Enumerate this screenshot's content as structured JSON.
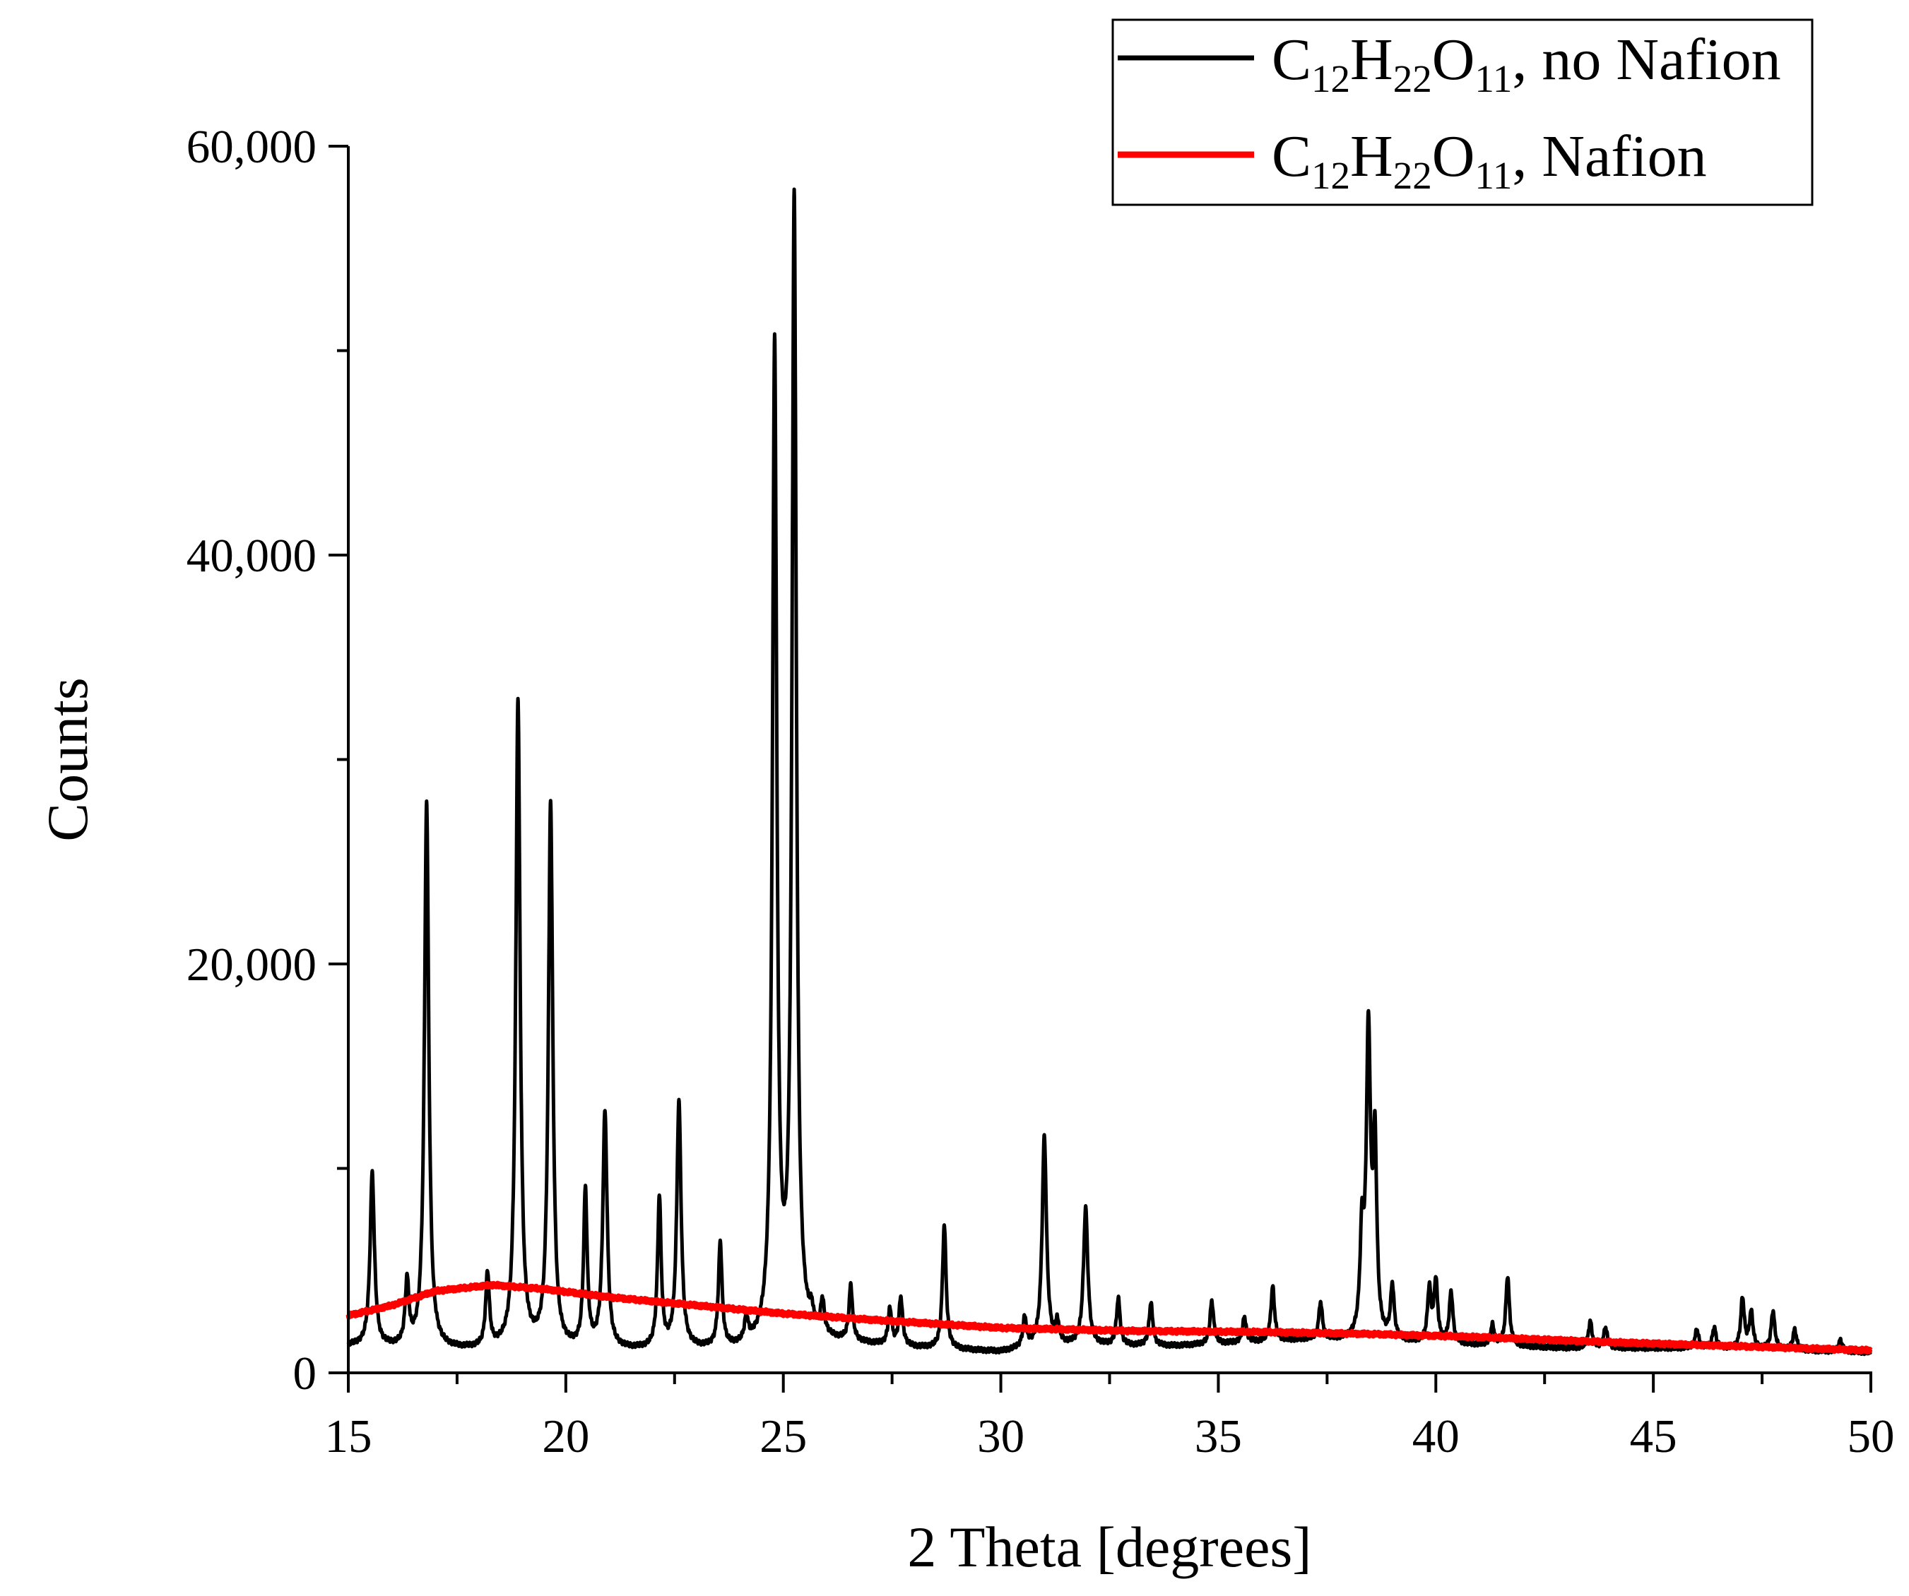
{
  "chart_data": {
    "type": "line",
    "title": "",
    "xlabel": "2 Theta [degrees]",
    "ylabel": "Counts",
    "xlim": [
      15,
      50
    ],
    "ylim": [
      0,
      60000
    ],
    "x_ticks": [
      15,
      20,
      25,
      30,
      35,
      40,
      45,
      50
    ],
    "x_tick_labels": [
      "15",
      "20",
      "25",
      "30",
      "35",
      "40",
      "45",
      "50"
    ],
    "y_ticks": [
      0,
      20000,
      40000,
      60000
    ],
    "y_tick_labels": [
      "0",
      "20,000",
      "40,000",
      "60,000"
    ],
    "legend_position": "top-right",
    "series": [
      {
        "name": "C12H22O11, no Nafion",
        "legend": {
          "base1": "C",
          "sub1": "12",
          "base2": "H",
          "sub2": "22",
          "base3": "O",
          "sub3": "11",
          "suffix": ", no Nafion"
        },
        "color": "#000000",
        "baseline": [
          [
            15,
            1300
          ],
          [
            17,
            1100
          ],
          [
            20,
            1050
          ],
          [
            24,
            1100
          ],
          [
            26,
            1500
          ],
          [
            28,
            1200
          ],
          [
            30,
            1000
          ],
          [
            31,
            1300
          ],
          [
            34,
            1300
          ],
          [
            37,
            1600
          ],
          [
            40,
            1400
          ],
          [
            43,
            1200
          ],
          [
            46,
            1200
          ],
          [
            50,
            1000
          ]
        ],
        "peaks": [
          {
            "x": 15.55,
            "y": 9700,
            "w": 0.06
          },
          {
            "x": 16.35,
            "y": 4300,
            "w": 0.05
          },
          {
            "x": 16.8,
            "y": 27800,
            "w": 0.06
          },
          {
            "x": 18.2,
            "y": 4700,
            "w": 0.05
          },
          {
            "x": 18.9,
            "y": 32800,
            "w": 0.06
          },
          {
            "x": 19.65,
            "y": 27800,
            "w": 0.06
          },
          {
            "x": 20.45,
            "y": 8700,
            "w": 0.05
          },
          {
            "x": 20.9,
            "y": 12600,
            "w": 0.06
          },
          {
            "x": 22.15,
            "y": 8400,
            "w": 0.05
          },
          {
            "x": 22.6,
            "y": 13100,
            "w": 0.06
          },
          {
            "x": 23.55,
            "y": 6200,
            "w": 0.05
          },
          {
            "x": 24.15,
            "y": 2300,
            "w": 0.05
          },
          {
            "x": 24.8,
            "y": 49700,
            "w": 0.06
          },
          {
            "x": 25.25,
            "y": 57000,
            "w": 0.06
          },
          {
            "x": 25.65,
            "y": 2200,
            "w": 0.05
          },
          {
            "x": 25.9,
            "y": 3100,
            "w": 0.05
          },
          {
            "x": 26.55,
            "y": 4100,
            "w": 0.05
          },
          {
            "x": 27.45,
            "y": 3000,
            "w": 0.05
          },
          {
            "x": 27.7,
            "y": 3600,
            "w": 0.05
          },
          {
            "x": 28.7,
            "y": 7200,
            "w": 0.05
          },
          {
            "x": 30.55,
            "y": 2600,
            "w": 0.05
          },
          {
            "x": 31.0,
            "y": 11500,
            "w": 0.06
          },
          {
            "x": 31.3,
            "y": 2300,
            "w": 0.05
          },
          {
            "x": 31.95,
            "y": 8000,
            "w": 0.06
          },
          {
            "x": 32.7,
            "y": 3600,
            "w": 0.05
          },
          {
            "x": 33.45,
            "y": 3400,
            "w": 0.05
          },
          {
            "x": 34.85,
            "y": 3500,
            "w": 0.05
          },
          {
            "x": 35.6,
            "y": 2700,
            "w": 0.05
          },
          {
            "x": 36.25,
            "y": 4200,
            "w": 0.05
          },
          {
            "x": 37.35,
            "y": 3400,
            "w": 0.05
          },
          {
            "x": 38.3,
            "y": 6100,
            "w": 0.05
          },
          {
            "x": 38.45,
            "y": 16300,
            "w": 0.06
          },
          {
            "x": 38.6,
            "y": 10500,
            "w": 0.05
          },
          {
            "x": 39.0,
            "y": 4100,
            "w": 0.05
          },
          {
            "x": 39.85,
            "y": 4000,
            "w": 0.05
          },
          {
            "x": 40.0,
            "y": 4400,
            "w": 0.05
          },
          {
            "x": 40.35,
            "y": 3900,
            "w": 0.05
          },
          {
            "x": 41.3,
            "y": 2300,
            "w": 0.05
          },
          {
            "x": 41.65,
            "y": 4700,
            "w": 0.05
          },
          {
            "x": 43.55,
            "y": 2500,
            "w": 0.05
          },
          {
            "x": 43.9,
            "y": 2200,
            "w": 0.05
          },
          {
            "x": 46.0,
            "y": 2100,
            "w": 0.05
          },
          {
            "x": 46.4,
            "y": 2200,
            "w": 0.05
          },
          {
            "x": 47.05,
            "y": 3600,
            "w": 0.05
          },
          {
            "x": 47.25,
            "y": 2900,
            "w": 0.05
          },
          {
            "x": 47.75,
            "y": 3000,
            "w": 0.05
          },
          {
            "x": 48.25,
            "y": 2100,
            "w": 0.05
          },
          {
            "x": 49.3,
            "y": 1600,
            "w": 0.05
          }
        ]
      },
      {
        "name": "C12H22O11, Nafion",
        "legend": {
          "base1": "C",
          "sub1": "12",
          "base2": "H",
          "sub2": "22",
          "base3": "O",
          "sub3": "11",
          "suffix": ", Nafion"
        },
        "color": "#ff0000",
        "points": [
          [
            15,
            2800
          ],
          [
            16,
            3300
          ],
          [
            17,
            4000
          ],
          [
            18.3,
            4300
          ],
          [
            19.5,
            4100
          ],
          [
            21,
            3700
          ],
          [
            23,
            3300
          ],
          [
            25,
            2900
          ],
          [
            27,
            2600
          ],
          [
            30,
            2200
          ],
          [
            33,
            2050
          ],
          [
            36,
            2000
          ],
          [
            38.5,
            1900
          ],
          [
            41,
            1750
          ],
          [
            44,
            1500
          ],
          [
            47,
            1300
          ],
          [
            50,
            1100
          ]
        ]
      }
    ]
  }
}
